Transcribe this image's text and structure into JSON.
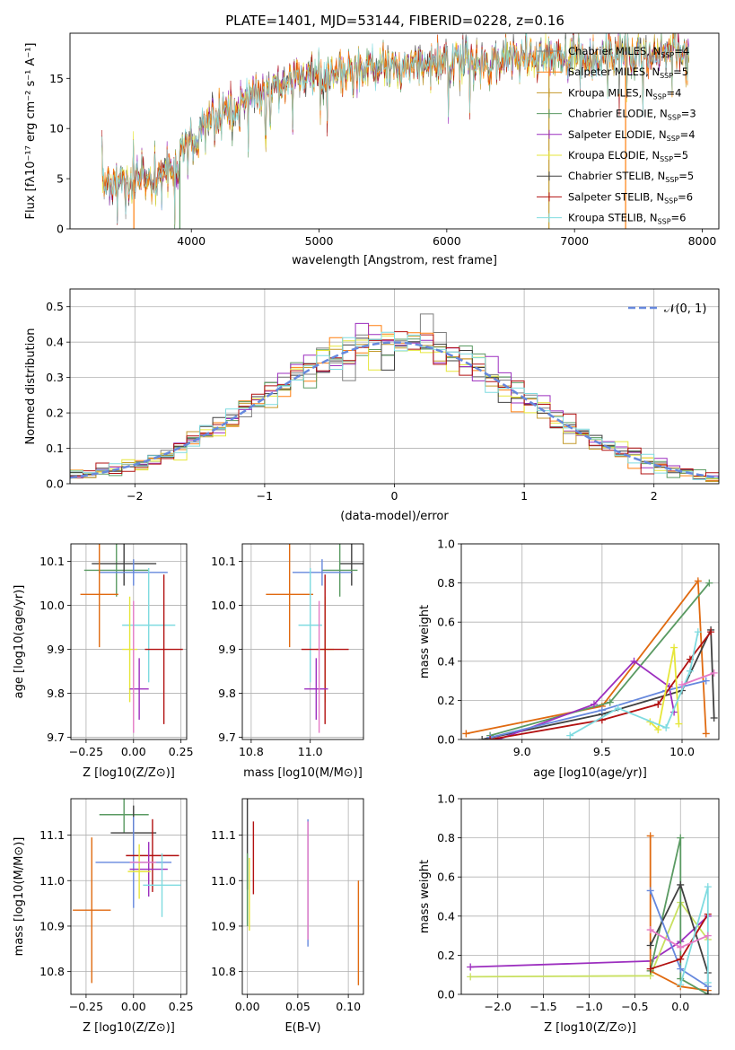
{
  "figure": {
    "title": "PLATE=1401, MJD=53144, FIBERID=0228, z=0.16"
  },
  "models": [
    {
      "name": "Chabrier MILES",
      "nssp": "4",
      "color": "#7f7f7f"
    },
    {
      "name": "Salpeter MILES",
      "nssp": "5",
      "color": "#ff7f0e"
    },
    {
      "name": "Kroupa MILES",
      "nssp": "4",
      "color": "#c49a2c"
    },
    {
      "name": "Chabrier ELODIE",
      "nssp": "3",
      "color": "#5a9a62"
    },
    {
      "name": "Salpeter ELODIE",
      "nssp": "4",
      "color": "#9c2fbf"
    },
    {
      "name": "Kroupa ELODIE",
      "nssp": "5",
      "color": "#e6e63a"
    },
    {
      "name": "Chabrier STELIB",
      "nssp": "5",
      "color": "#404040"
    },
    {
      "name": "Salpeter STELIB",
      "nssp": "6",
      "color": "#b21010"
    },
    {
      "name": "Kroupa STELIB",
      "nssp": "6",
      "color": "#7fdbe0"
    }
  ],
  "extra_colors": {
    "blue": "#6688dd",
    "pink": "#e67ac6",
    "olive": "#c8e060",
    "orange2": "#e06a10"
  },
  "chart_data": [
    {
      "id": "spectrum",
      "type": "line",
      "title": "PLATE=1401, MJD=53144, FIBERID=0228, z=0.16",
      "xlabel": "wavelength [Angstrom, rest frame]",
      "ylabel": "Flux [f_λ 10^-17 erg cm^-2 s^-1 A^-1]",
      "xlim": [
        3050,
        8130
      ],
      "ylim": [
        0,
        19.5
      ],
      "xticks": [
        4000,
        5000,
        6000,
        7000,
        8000
      ],
      "yticks": [
        0,
        5,
        10,
        15
      ],
      "grid": false,
      "legend": "upper right",
      "continuum": {
        "x": [
          3300,
          3400,
          3500,
          3600,
          3700,
          3800,
          3900,
          4000,
          4100,
          4200,
          4300,
          4400,
          4500,
          4600,
          4700,
          4800,
          4900,
          5000,
          5200,
          5400,
          5600,
          5800,
          6000,
          6200,
          6400,
          6600,
          6800,
          7000,
          7200,
          7400,
          7600,
          7800,
          7900
        ],
        "y": [
          4.7,
          4.9,
          4.8,
          5.0,
          5.4,
          6.0,
          6.6,
          8.5,
          9.8,
          10.6,
          11.4,
          12.5,
          13.3,
          13.9,
          14.4,
          14.8,
          15.0,
          15.2,
          15.6,
          15.9,
          16.1,
          16.4,
          16.6,
          16.8,
          16.9,
          17.0,
          17.0,
          17.1,
          17.2,
          17.4,
          17.6,
          17.7,
          17.8
        ]
      }
    },
    {
      "id": "residuals",
      "type": "line",
      "xlabel": "(data-model)/error",
      "ylabel": "Normed distribution",
      "xlim": [
        -2.5,
        2.5
      ],
      "ylim": [
        0,
        0.55
      ],
      "xticks": [
        -2,
        -1,
        0,
        1,
        2
      ],
      "yticks": [
        0.0,
        0.1,
        0.2,
        0.3,
        0.4,
        0.5
      ],
      "grid": true,
      "legend": "upper right",
      "gaussian_label": "𝒩(0, 1)",
      "bin_width": 0.1
    },
    {
      "id": "age_vs_Z",
      "type": "scatter",
      "xlabel": "Z [log10(Z/Z⊙)]",
      "ylabel": "age [log10(age/yr)]",
      "xlim": [
        -0.33,
        0.28
      ],
      "ylim": [
        9.695,
        10.14
      ],
      "xticks": [
        -0.25,
        0.0,
        0.25
      ],
      "yticks": [
        9.7,
        9.8,
        9.9,
        10.0,
        10.1
      ],
      "grid": true,
      "points": [
        {
          "x": -0.09,
          "xe": 0.17,
          "y": 10.08,
          "ye": 0.06,
          "c": "#5a9a62"
        },
        {
          "x": -0.05,
          "xe": 0.17,
          "y": 10.095,
          "ye": 0.05,
          "c": "#404040"
        },
        {
          "x": 0.0,
          "xe": 0.18,
          "y": 10.075,
          "ye": 0.03,
          "c": "#6688dd"
        },
        {
          "x": -0.18,
          "xe": 0.1,
          "y": 10.025,
          "ye": 0.12,
          "c": "#e06a10"
        },
        {
          "x": 0.08,
          "xe": 0.14,
          "y": 9.955,
          "ye": 0.13,
          "c": "#7fdbe0"
        },
        {
          "x": -0.02,
          "xe": 0.04,
          "y": 9.9,
          "ye": 0.12,
          "c": "#e6e63a"
        },
        {
          "x": 0.16,
          "xe": 0.1,
          "y": 9.9,
          "ye": 0.17,
          "c": "#b21010"
        },
        {
          "x": 0.03,
          "xe": 0.05,
          "y": 9.81,
          "ye": 0.07,
          "c": "#9c2fbf"
        },
        {
          "x": 0.0,
          "xe": 0.0,
          "y": 9.86,
          "ye": 0.15,
          "c": "#e67ac6"
        }
      ]
    },
    {
      "id": "age_vs_mass",
      "type": "scatter",
      "xlabel": "mass [log10(M/M⊙)]",
      "ylabel": "",
      "xlim": [
        10.77,
        11.18
      ],
      "ylim": [
        9.695,
        10.14
      ],
      "xticks": [
        10.8,
        11.0
      ],
      "yticks": [
        9.7,
        9.8,
        9.9,
        10.0,
        10.1
      ],
      "grid": true,
      "points": [
        {
          "x": 11.14,
          "xe": 0.04,
          "y": 10.095,
          "ye": 0.05,
          "c": "#404040"
        },
        {
          "x": 11.1,
          "xe": 0.06,
          "y": 10.08,
          "ye": 0.06,
          "c": "#5a9a62"
        },
        {
          "x": 11.04,
          "xe": 0.1,
          "y": 10.075,
          "ye": 0.03,
          "c": "#6688dd"
        },
        {
          "x": 10.93,
          "xe": 0.08,
          "y": 10.025,
          "ye": 0.12,
          "c": "#e06a10"
        },
        {
          "x": 11.0,
          "xe": 0.04,
          "y": 9.955,
          "ye": 0.13,
          "c": "#7fdbe0"
        },
        {
          "x": 11.05,
          "xe": 0.03,
          "y": 9.9,
          "ye": 0.12,
          "c": "#e6e63a"
        },
        {
          "x": 11.05,
          "xe": 0.08,
          "y": 9.9,
          "ye": 0.17,
          "c": "#b21010"
        },
        {
          "x": 11.02,
          "xe": 0.04,
          "y": 9.81,
          "ye": 0.07,
          "c": "#9c2fbf"
        },
        {
          "x": 11.03,
          "xe": 0.0,
          "y": 9.86,
          "ye": 0.15,
          "c": "#e67ac6"
        }
      ]
    },
    {
      "id": "weight_vs_age",
      "type": "line",
      "xlabel": "age [log10(age/yr)]",
      "ylabel": "mass weight",
      "xlim": [
        8.62,
        10.23
      ],
      "ylim": [
        0,
        1.0
      ],
      "xticks": [
        9.0,
        9.5,
        10.0
      ],
      "yticks": [
        0.0,
        0.2,
        0.4,
        0.6,
        0.8,
        1.0
      ],
      "grid": true,
      "series": [
        {
          "c": "#e06a10",
          "x": [
            8.65,
            9.5,
            10.1,
            10.15
          ],
          "y": [
            0.03,
            0.17,
            0.81,
            0.03
          ]
        },
        {
          "c": "#5a9a62",
          "x": [
            8.8,
            9.55,
            10.17
          ],
          "y": [
            0.02,
            0.19,
            0.8
          ]
        },
        {
          "c": "#404040",
          "x": [
            8.75,
            9.5,
            10.0,
            10.18,
            10.2
          ],
          "y": [
            0.0,
            0.13,
            0.25,
            0.56,
            0.11
          ]
        },
        {
          "c": "#9c2fbf",
          "x": [
            8.85,
            9.45,
            9.7,
            9.92,
            9.95
          ],
          "y": [
            0.0,
            0.18,
            0.4,
            0.27,
            0.14
          ]
        },
        {
          "c": "#6688dd",
          "x": [
            8.8,
            9.5,
            9.9,
            10.15
          ],
          "y": [
            0.01,
            0.15,
            0.25,
            0.3
          ]
        },
        {
          "c": "#b21010",
          "x": [
            8.8,
            9.5,
            9.85,
            10.05,
            10.18
          ],
          "y": [
            0.0,
            0.1,
            0.18,
            0.41,
            0.55
          ]
        },
        {
          "c": "#e6e63a",
          "x": [
            9.8,
            9.85,
            9.95,
            9.98
          ],
          "y": [
            0.09,
            0.05,
            0.47,
            0.08
          ]
        },
        {
          "c": "#7fdbe0",
          "x": [
            9.3,
            9.6,
            9.9,
            10.05,
            10.1
          ],
          "y": [
            0.02,
            0.16,
            0.06,
            0.35,
            0.55
          ]
        },
        {
          "c": "#e67ac6",
          "x": [
            10.0,
            10.2
          ],
          "y": [
            0.28,
            0.34
          ]
        }
      ]
    },
    {
      "id": "mass_vs_Z",
      "type": "scatter",
      "xlabel": "Z [log10(Z/Z⊙)]",
      "ylabel": "mass [log10(M/M⊙)]",
      "xlim": [
        -0.33,
        0.28
      ],
      "ylim": [
        10.75,
        11.18
      ],
      "xticks": [
        -0.25,
        0.0,
        0.25
      ],
      "yticks": [
        10.8,
        10.9,
        11.0,
        11.1
      ],
      "grid": true,
      "points": [
        {
          "x": -0.05,
          "xe": 0.13,
          "y": 11.145,
          "ye": 0.04,
          "c": "#5a9a62"
        },
        {
          "x": 0.0,
          "xe": 0.12,
          "y": 11.105,
          "ye": 0.06,
          "c": "#404040"
        },
        {
          "x": 0.0,
          "xe": 0.2,
          "y": 11.04,
          "ye": 0.1,
          "c": "#6688dd"
        },
        {
          "x": 0.1,
          "xe": 0.14,
          "y": 11.055,
          "ye": 0.08,
          "c": "#b21010"
        },
        {
          "x": 0.08,
          "xe": 0.1,
          "y": 11.025,
          "ye": 0.06,
          "c": "#9c2fbf"
        },
        {
          "x": 0.03,
          "xe": 0.06,
          "y": 11.02,
          "ye": 0.06,
          "c": "#e6e63a"
        },
        {
          "x": 0.15,
          "xe": 0.1,
          "y": 10.99,
          "ye": 0.07,
          "c": "#7fdbe0"
        },
        {
          "x": -0.22,
          "xe": 0.1,
          "y": 10.935,
          "ye": 0.16,
          "c": "#e06a10"
        },
        {
          "x": 0.05,
          "xe": 0.07,
          "y": 11.04,
          "ye": 0.0,
          "c": "#e67ac6"
        }
      ]
    },
    {
      "id": "mass_vs_EBV",
      "type": "scatter",
      "xlabel": "E(B-V)",
      "ylabel": "",
      "xlim": [
        -0.005,
        0.115
      ],
      "ylim": [
        10.75,
        11.18
      ],
      "xticks": [
        0.0,
        0.05,
        0.1
      ],
      "yticks": [
        10.8,
        10.9,
        11.0,
        11.1
      ],
      "grid": true,
      "points": [
        {
          "x": 0.0,
          "xe": 0,
          "y": 11.08,
          "ye": 0.1,
          "c": "#404040"
        },
        {
          "x": 0.0,
          "xe": 0,
          "y": 10.98,
          "ye": 0.08,
          "c": "#5a9a62"
        },
        {
          "x": 0.002,
          "xe": 0,
          "y": 10.97,
          "ye": 0.08,
          "c": "#e6e63a"
        },
        {
          "x": 0.006,
          "xe": 0,
          "y": 11.05,
          "ye": 0.08,
          "c": "#b21010"
        },
        {
          "x": 0.06,
          "xe": 0,
          "y": 10.995,
          "ye": 0.14,
          "c": "#6688dd"
        },
        {
          "x": 0.06,
          "xe": 0,
          "y": 11.0,
          "ye": 0.13,
          "c": "#e67ac6"
        },
        {
          "x": 0.11,
          "xe": 0,
          "y": 10.885,
          "ye": 0.115,
          "c": "#e06a10"
        }
      ]
    },
    {
      "id": "weight_vs_Z",
      "type": "line",
      "xlabel": "Z [log10(Z/Z⊙)]",
      "ylabel": "mass weight",
      "xlim": [
        -2.4,
        0.42
      ],
      "ylim": [
        0,
        1.0
      ],
      "xticks": [
        -2.0,
        -1.5,
        -1.0,
        -0.5,
        0.0
      ],
      "yticks": [
        0.0,
        0.2,
        0.4,
        0.6,
        0.8,
        1.0
      ],
      "grid": true,
      "series": [
        {
          "c": "#9c2fbf",
          "x": [
            -2.3,
            -0.33,
            0.0,
            0.3
          ],
          "y": [
            0.14,
            0.17,
            0.27,
            0.4
          ]
        },
        {
          "c": "#c8e060",
          "x": [
            -2.3,
            -0.33,
            0.0,
            0.3
          ],
          "y": [
            0.09,
            0.095,
            0.47,
            0.28
          ]
        },
        {
          "c": "#e06a10",
          "x": [
            -0.33,
            -0.33,
            0.0,
            0.3
          ],
          "y": [
            0.81,
            0.12,
            0.04,
            0.02
          ]
        },
        {
          "c": "#5a9a62",
          "x": [
            -0.33,
            0.0,
            0.0,
            0.3
          ],
          "y": [
            0.12,
            0.8,
            0.08,
            0.0
          ]
        },
        {
          "c": "#404040",
          "x": [
            -0.33,
            0.0,
            0.3,
            0.3
          ],
          "y": [
            0.25,
            0.56,
            0.11,
            0.0
          ]
        },
        {
          "c": "#6688dd",
          "x": [
            -0.33,
            0.0,
            0.3
          ],
          "y": [
            0.53,
            0.13,
            0.04
          ]
        },
        {
          "c": "#b21010",
          "x": [
            -0.33,
            0.0,
            0.3
          ],
          "y": [
            0.13,
            0.18,
            0.41
          ]
        },
        {
          "c": "#7fdbe0",
          "x": [
            0.0,
            0.3,
            0.3
          ],
          "y": [
            0.05,
            0.55,
            0.06
          ]
        },
        {
          "c": "#e67ac6",
          "x": [
            -0.33,
            0.0,
            0.3
          ],
          "y": [
            0.33,
            0.24,
            0.3
          ]
        }
      ]
    }
  ]
}
